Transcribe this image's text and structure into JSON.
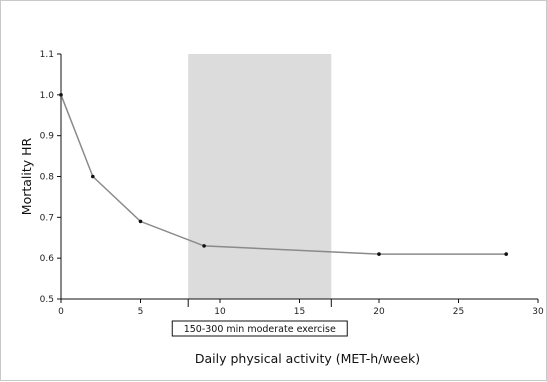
{
  "chart_data": {
    "type": "line",
    "xlabel": "Daily physical activity (MET-h/week)",
    "ylabel": "Mortality HR",
    "xlim": [
      0,
      30
    ],
    "ylim": [
      0.5,
      1.1
    ],
    "xticks": [
      0,
      5,
      10,
      15,
      20,
      25,
      30
    ],
    "yticks": [
      0.5,
      0.6,
      0.7,
      0.8,
      0.9,
      1.0,
      1.1
    ],
    "xtick_labels": [
      "0",
      "5",
      "10",
      "15",
      "20",
      "25",
      "30"
    ],
    "ytick_labels": [
      "0.5",
      "0.6",
      "0.7",
      "0.8",
      "0.9",
      "1.0",
      "1.1"
    ],
    "series": [
      {
        "x": [
          0,
          2,
          5,
          9,
          20,
          28
        ],
        "y": [
          1.0,
          0.8,
          0.69,
          0.63,
          0.61,
          0.61
        ]
      }
    ],
    "shaded_region": {
      "x_start": 8,
      "x_end": 17,
      "label": "150-300 min moderate exercise",
      "color": "#dcdcdc"
    },
    "colors": {
      "line": "#8a8a8a",
      "marker": "#111111",
      "axis": "#111111"
    },
    "grid": false,
    "legend": "none"
  }
}
